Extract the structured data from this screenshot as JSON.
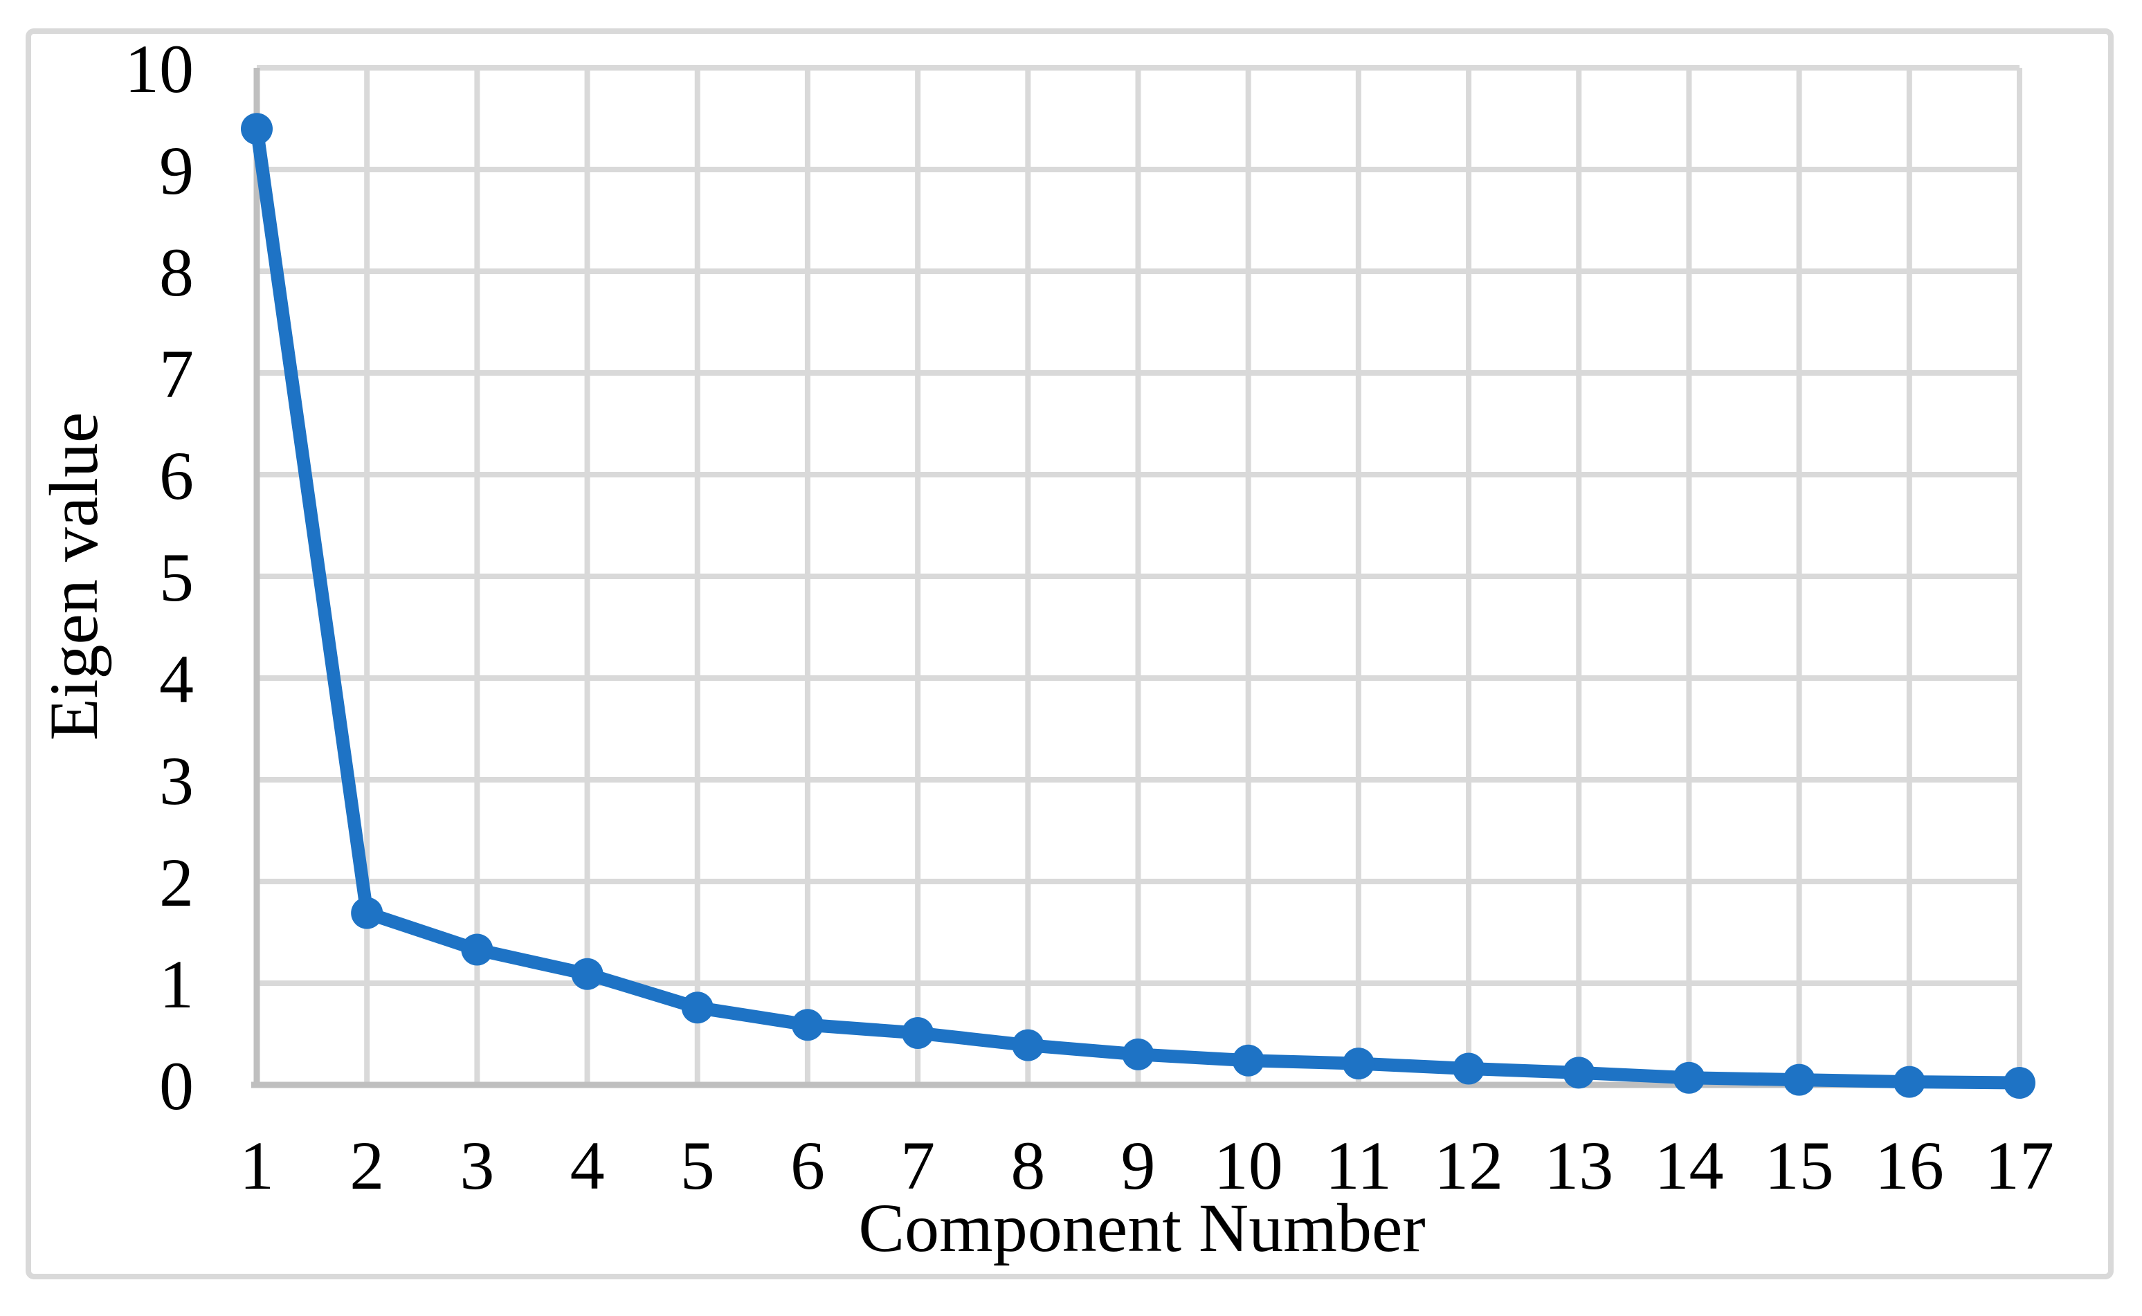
{
  "figure": {
    "description": "Scree plot of eigenvalues by principal component number"
  },
  "chart_data": {
    "type": "line",
    "title": "",
    "xlabel": "Component Number",
    "ylabel": "Eigen value",
    "categories": [
      "1",
      "2",
      "3",
      "4",
      "5",
      "6",
      "7",
      "8",
      "9",
      "10",
      "11",
      "12",
      "13",
      "14",
      "15",
      "16",
      "17"
    ],
    "series": [
      {
        "name": "Eigen value",
        "values": [
          9.4,
          1.69,
          1.33,
          1.09,
          0.76,
          0.59,
          0.51,
          0.39,
          0.3,
          0.24,
          0.21,
          0.16,
          0.12,
          0.07,
          0.05,
          0.03,
          0.02
        ]
      }
    ],
    "ylim": [
      0,
      10
    ],
    "y_ticks": [
      "0",
      "1",
      "2",
      "3",
      "4",
      "5",
      "6",
      "7",
      "8",
      "9",
      "10"
    ],
    "grid": true,
    "legend_position": "none",
    "marker": "circle",
    "colors": {
      "line": "#1E73C5",
      "marker": "#1E73C5",
      "gridline": "#D9D9D9",
      "axis_line": "#BFBFBF",
      "frame_border": "#D9D9D9",
      "text": "#000000",
      "background": "#FFFFFF"
    }
  }
}
